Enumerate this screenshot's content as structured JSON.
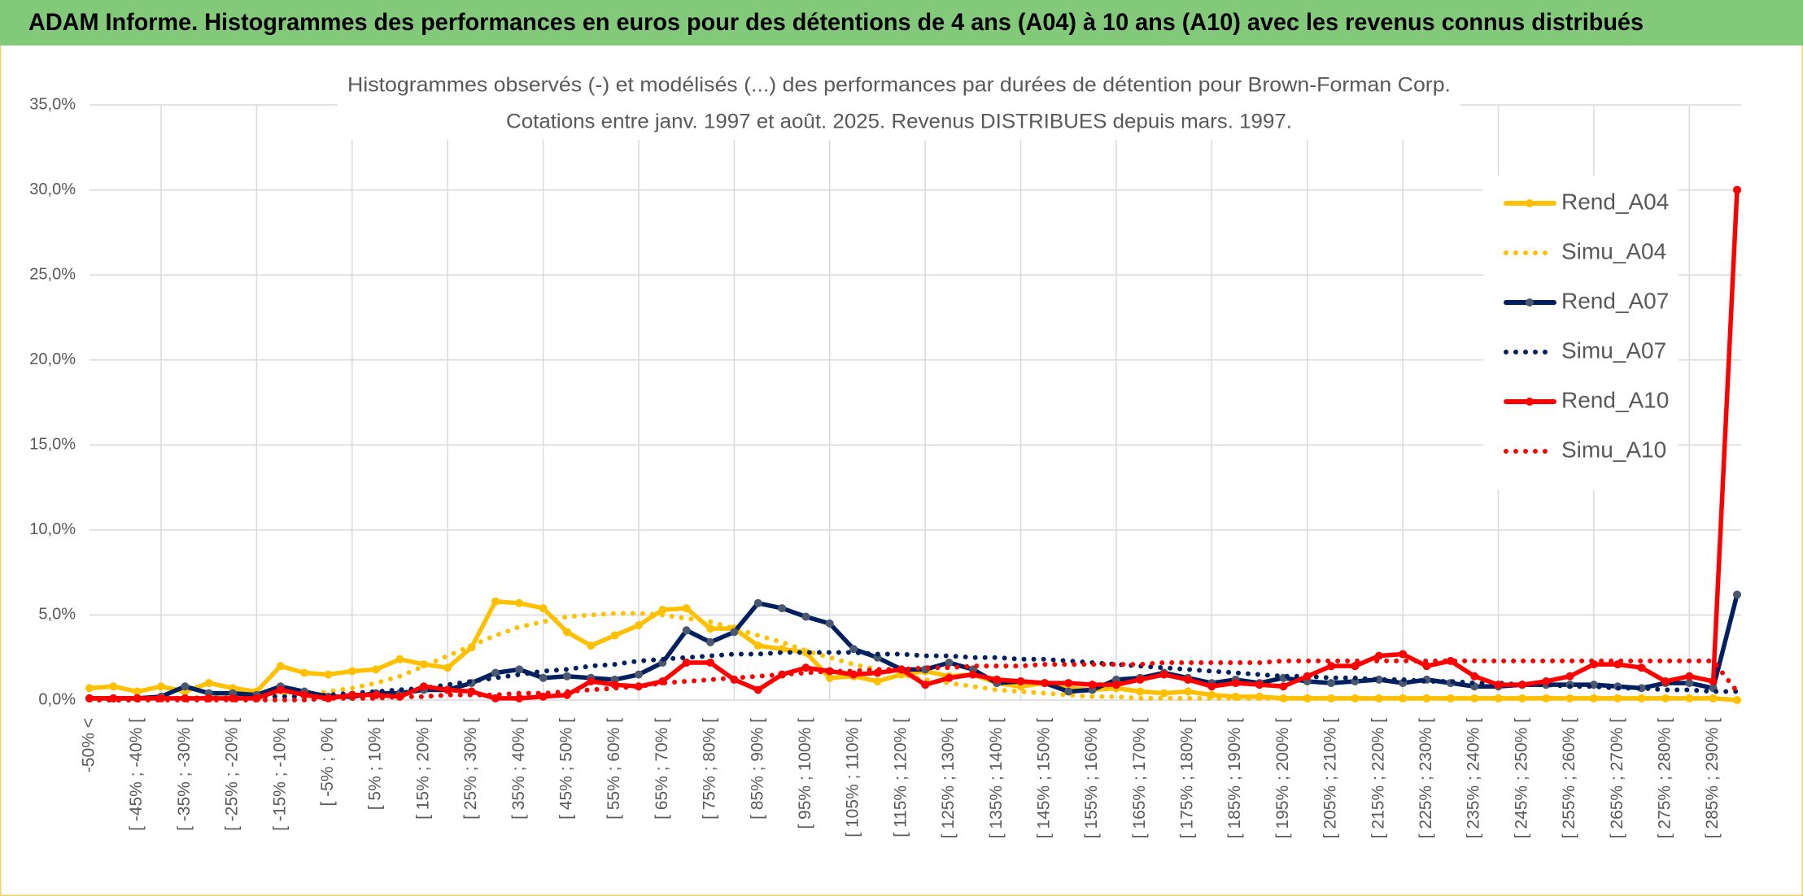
{
  "header": {
    "title": "ADAM Informe. Histogrammes des performances en euros pour des détentions de 4 ans (A04) à 10 ans (A10) avec les revenus connus distribués"
  },
  "chart_data": {
    "type": "line",
    "title": "Histogrammes observés (-) et modélisés (...) des performances par durées de détention pour Brown-Forman Corp.",
    "subtitle": "Cotations entre janv. 1997 et août. 2025. Revenus DISTRIBUES depuis mars. 1997.",
    "categories": [
      "-50% <",
      null,
      "[ -45% ; -40% [",
      null,
      "[ -35% ; -30% [",
      null,
      "[ -25% ; -20% [",
      null,
      "[ -15% ; -10% [",
      null,
      "[ -5% ; 0% [",
      null,
      "[ 5% ; 10% [",
      null,
      "[ 15% ; 20% [",
      null,
      "[ 25% ; 30% [",
      null,
      "[ 35% ; 40% [",
      null,
      "[ 45% ; 50% [",
      null,
      "[ 55% ; 60% [",
      null,
      "[ 65% ; 70% [",
      null,
      "[ 75% ; 80% [",
      null,
      "[ 85% ; 90% [",
      null,
      "[ 95% ; 100% [",
      null,
      "[ 105% ; 110% [",
      null,
      "[ 115% ; 120% [",
      null,
      "[ 125% ; 130% [",
      null,
      "[ 135% ; 140% [",
      null,
      "[ 145% ; 150% [",
      null,
      "[ 155% ; 160% [",
      null,
      "[ 165% ; 170% [",
      null,
      "[ 175% ; 180% [",
      null,
      "[ 185% ; 190% [",
      null,
      "[ 195% ; 200% [",
      null,
      "[ 205% ; 210% [",
      null,
      "[ 215% ; 220% [",
      null,
      "[ 225% ; 230% [",
      null,
      "[ 235% ; 240% [",
      null,
      "[ 245% ; 250% [",
      null,
      "[ 255% ; 260% [",
      null,
      "[ 265% ; 270% [",
      null,
      "[ 275% ; 280% [",
      null,
      "[ 285% ; 290% [",
      null
    ],
    "series": [
      {
        "name": "Rend_A04",
        "color": "#ffc000",
        "style": "solid",
        "marker_color": "#ffc000",
        "values": [
          0.7,
          0.8,
          0.5,
          0.8,
          0.5,
          1.0,
          0.7,
          0.5,
          2.0,
          1.6,
          1.5,
          1.7,
          1.8,
          2.4,
          2.1,
          1.9,
          3.1,
          5.8,
          5.7,
          5.4,
          4.0,
          3.2,
          3.8,
          4.4,
          5.3,
          5.4,
          4.2,
          4.2,
          3.2,
          3.0,
          2.8,
          1.3,
          1.4,
          1.1,
          1.5,
          1.7,
          1.4,
          1.5,
          1.0,
          0.8,
          1.0,
          0.7,
          0.6,
          0.7,
          0.5,
          0.4,
          0.5,
          0.3,
          0.2,
          0.2,
          0.1,
          0.1,
          0.1,
          0.1,
          0.1,
          0.1,
          0.1,
          0.1,
          0.1,
          0.1,
          0.1,
          0.1,
          0.1,
          0.1,
          0.1,
          0.1,
          0.1,
          0.1,
          0.1,
          0.0
        ]
      },
      {
        "name": "Simu_A04",
        "color": "#ffc000",
        "style": "dotted",
        "values": [
          0.1,
          0.1,
          0.1,
          0.1,
          0.1,
          0.2,
          0.2,
          0.2,
          0.3,
          0.3,
          0.5,
          0.7,
          1.0,
          1.4,
          2.0,
          2.6,
          3.2,
          3.8,
          4.3,
          4.6,
          4.9,
          5.0,
          5.1,
          5.1,
          5.0,
          4.8,
          4.6,
          4.2,
          3.8,
          3.4,
          2.9,
          2.5,
          2.1,
          1.8,
          1.5,
          1.2,
          1.0,
          0.8,
          0.6,
          0.5,
          0.4,
          0.3,
          0.2,
          0.2,
          0.1,
          0.1,
          0.1,
          0.1,
          0.1,
          0.1,
          0.1,
          0.1,
          0.1,
          0.1,
          0.1,
          0.1,
          0.1,
          0.1,
          0.1,
          0.1,
          0.1,
          0.1,
          0.1,
          0.1,
          0.1,
          0.1,
          0.1,
          0.1,
          0.1,
          0.0
        ]
      },
      {
        "name": "Rend_A07",
        "color": "#002060",
        "style": "solid",
        "marker_color": "#4a5870",
        "values": [
          0.1,
          0.1,
          0.1,
          0.2,
          0.8,
          0.4,
          0.4,
          0.3,
          0.8,
          0.5,
          0.2,
          0.2,
          0.4,
          0.4,
          0.6,
          0.6,
          1.0,
          1.6,
          1.8,
          1.3,
          1.4,
          1.3,
          1.2,
          1.5,
          2.2,
          4.1,
          3.4,
          4.0,
          5.7,
          5.4,
          4.9,
          4.5,
          3.0,
          2.5,
          1.8,
          1.8,
          2.2,
          1.8,
          1.0,
          1.1,
          1.0,
          0.5,
          0.6,
          1.2,
          1.3,
          1.6,
          1.3,
          1.0,
          1.2,
          1.0,
          1.3,
          1.1,
          1.0,
          1.1,
          1.2,
          1.0,
          1.2,
          1.0,
          0.8,
          0.8,
          0.9,
          0.9,
          0.9,
          0.9,
          0.8,
          0.7,
          1.0,
          1.0,
          0.7,
          6.2
        ]
      },
      {
        "name": "Simu_A07",
        "color": "#002060",
        "style": "dotted",
        "values": [
          0.0,
          0.0,
          0.0,
          0.1,
          0.1,
          0.1,
          0.1,
          0.2,
          0.2,
          0.2,
          0.3,
          0.4,
          0.5,
          0.6,
          0.7,
          0.9,
          1.1,
          1.3,
          1.5,
          1.7,
          1.8,
          2.0,
          2.1,
          2.3,
          2.4,
          2.5,
          2.6,
          2.7,
          2.7,
          2.8,
          2.8,
          2.8,
          2.8,
          2.7,
          2.7,
          2.6,
          2.6,
          2.5,
          2.5,
          2.4,
          2.4,
          2.3,
          2.2,
          2.1,
          2.0,
          1.9,
          1.8,
          1.7,
          1.6,
          1.5,
          1.4,
          1.4,
          1.3,
          1.3,
          1.2,
          1.2,
          1.1,
          1.1,
          1.0,
          1.0,
          0.9,
          0.9,
          0.8,
          0.8,
          0.7,
          0.7,
          0.6,
          0.6,
          0.5,
          0.5
        ]
      },
      {
        "name": "Rend_A10",
        "color": "#ff0000",
        "style": "solid",
        "marker_color": "#ff0000",
        "values": [
          0.1,
          0.1,
          0.1,
          0.1,
          0.1,
          0.1,
          0.1,
          0.1,
          0.6,
          0.3,
          0.1,
          0.3,
          0.3,
          0.2,
          0.8,
          0.6,
          0.5,
          0.1,
          0.1,
          0.2,
          0.3,
          1.1,
          0.9,
          0.8,
          1.1,
          2.2,
          2.2,
          1.2,
          0.6,
          1.5,
          1.9,
          1.7,
          1.5,
          1.6,
          1.8,
          0.9,
          1.3,
          1.5,
          1.2,
          1.1,
          1.0,
          1.0,
          0.9,
          0.9,
          1.2,
          1.5,
          1.2,
          0.8,
          1.0,
          0.9,
          0.8,
          1.4,
          2.0,
          2.0,
          2.6,
          2.7,
          2.0,
          2.3,
          1.4,
          0.9,
          0.9,
          1.1,
          1.4,
          2.1,
          2.1,
          1.9,
          1.1,
          1.4,
          1.1,
          30.0
        ]
      },
      {
        "name": "Simu_A10",
        "color": "#ff0000",
        "style": "dotted",
        "values": [
          0.0,
          0.0,
          0.0,
          0.0,
          0.0,
          0.0,
          0.0,
          0.0,
          0.0,
          0.0,
          0.1,
          0.1,
          0.1,
          0.2,
          0.2,
          0.3,
          0.3,
          0.3,
          0.4,
          0.4,
          0.5,
          0.6,
          0.7,
          0.8,
          1.0,
          1.1,
          1.2,
          1.3,
          1.4,
          1.5,
          1.6,
          1.7,
          1.7,
          1.8,
          1.8,
          1.9,
          1.9,
          2.0,
          2.0,
          2.0,
          2.1,
          2.1,
          2.1,
          2.1,
          2.1,
          2.2,
          2.2,
          2.2,
          2.2,
          2.2,
          2.3,
          2.3,
          2.3,
          2.3,
          2.3,
          2.3,
          2.3,
          2.3,
          2.3,
          2.3,
          2.3,
          2.3,
          2.3,
          2.3,
          2.3,
          2.3,
          2.3,
          2.3,
          2.3,
          0.5
        ]
      }
    ],
    "ylim": [
      0,
      35
    ],
    "yticks": [
      {
        "value": 0,
        "label": "0,0%"
      },
      {
        "value": 5,
        "label": "5,0%"
      },
      {
        "value": 10,
        "label": "10,0%"
      },
      {
        "value": 15,
        "label": "15,0%"
      },
      {
        "value": 20,
        "label": "20,0%"
      },
      {
        "value": 25,
        "label": "25,0%"
      },
      {
        "value": 30,
        "label": "30,0%"
      },
      {
        "value": 35,
        "label": "35,0%"
      }
    ],
    "grid": true,
    "legend": "right"
  }
}
